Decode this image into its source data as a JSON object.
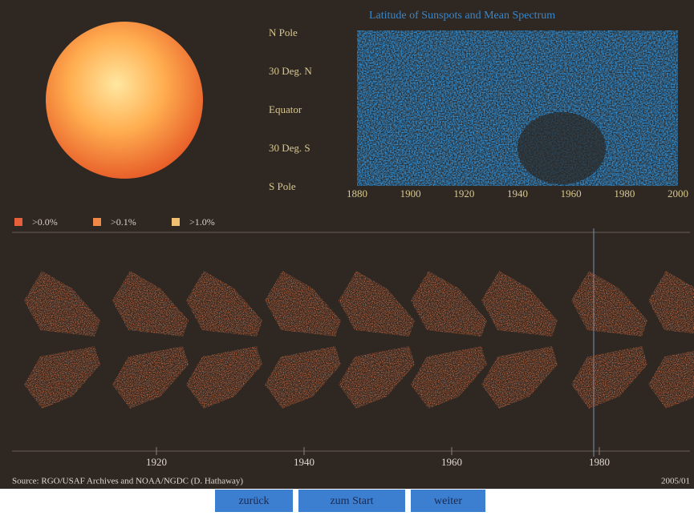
{
  "plot": {
    "title": "Latitude of Sunspots and Mean Spectrum",
    "y_labels": [
      "N Pole",
      "30 Deg. N",
      "Equator",
      "30 Deg. S",
      "S Pole"
    ],
    "x_labels": [
      "1880",
      "1900",
      "1920",
      "1940",
      "1960",
      "1980",
      "2000"
    ]
  },
  "legend": [
    ">0.0%",
    ">0.1%",
    ">1.0%"
  ],
  "timeline": {
    "x_labels": [
      "1920",
      "1940",
      "1960",
      "1980"
    ]
  },
  "footer": {
    "source": "Source: RGO/USAF Archives and NOAA/NGDC (D. Hathaway)",
    "date": "2005/01"
  },
  "buttons": [
    "zurück",
    "zum Start",
    "weiter"
  ]
}
